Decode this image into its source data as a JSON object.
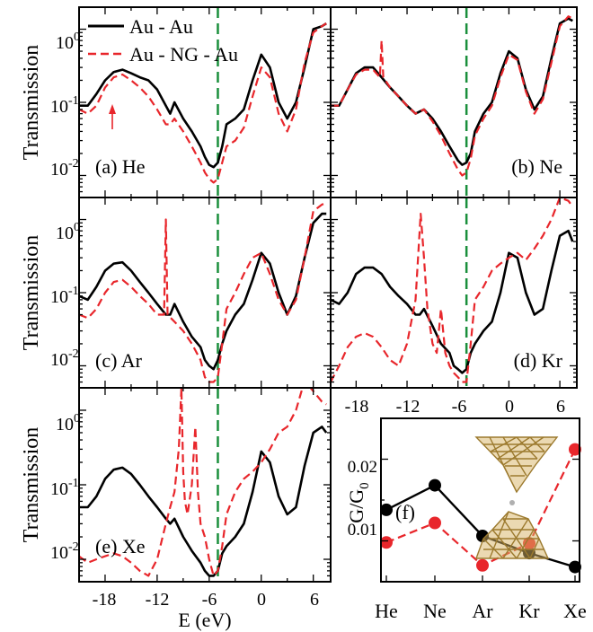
{
  "figure": {
    "ylabel": "Transmission",
    "xlabel": "E (eV)",
    "legend": [
      "Au - Au",
      "Au - NG - Au"
    ],
    "colors": {
      "au_au": "#000000",
      "au_ng_au": "#e8262b",
      "fermi": "#1a8f3c",
      "inset_gold": "#c9a04a"
    }
  },
  "chart_data": [
    {
      "type": "line",
      "id": "a",
      "panel_label": "(a) He",
      "ylabel": "Transmission",
      "yscale": "log",
      "ylim": [
        0.005,
        2
      ],
      "xlim": [
        -21,
        8
      ],
      "yticks": [
        "10-2",
        "10-1",
        "100"
      ],
      "fermi_level": -5,
      "annotation": "red arrow at -18 eV",
      "series": [
        {
          "name": "Au - Au",
          "x": [
            -21,
            -20,
            -19,
            -18,
            -17,
            -16,
            -15,
            -14,
            -13,
            -12,
            -11,
            -10.5,
            -10,
            -9,
            -8,
            -7,
            -6.5,
            -6,
            -5.5,
            -5,
            -4.5,
            -4,
            -3,
            -2,
            -1,
            0,
            1,
            2,
            3,
            4,
            5,
            6,
            7,
            7.5
          ],
          "y": [
            0.09,
            0.09,
            0.13,
            0.2,
            0.26,
            0.28,
            0.25,
            0.22,
            0.2,
            0.15,
            0.09,
            0.07,
            0.1,
            0.06,
            0.04,
            0.025,
            0.018,
            0.014,
            0.013,
            0.015,
            0.025,
            0.05,
            0.06,
            0.08,
            0.2,
            0.45,
            0.3,
            0.1,
            0.06,
            0.1,
            0.3,
            1.0,
            1.1,
            1.2
          ]
        },
        {
          "name": "Au - NG - Au",
          "x": [
            -21,
            -20,
            -19,
            -18,
            -17,
            -16,
            -15,
            -14,
            -13,
            -12,
            -11,
            -10.5,
            -10,
            -9,
            -8,
            -7,
            -6.5,
            -6,
            -5.5,
            -5,
            -4.5,
            -4,
            -3,
            -2,
            -1,
            0,
            1,
            2,
            3,
            4,
            5,
            6,
            7,
            7.5
          ],
          "y": [
            0.08,
            0.07,
            0.09,
            0.16,
            0.22,
            0.24,
            0.2,
            0.16,
            0.12,
            0.08,
            0.05,
            0.05,
            0.06,
            0.04,
            0.025,
            0.015,
            0.011,
            0.009,
            0.008,
            0.009,
            0.015,
            0.025,
            0.03,
            0.045,
            0.12,
            0.3,
            0.22,
            0.07,
            0.04,
            0.08,
            0.35,
            0.9,
            1.1,
            1.2
          ]
        }
      ]
    },
    {
      "type": "line",
      "id": "b",
      "panel_label": "(b) Ne",
      "yscale": "log",
      "ylim": [
        0.005,
        2
      ],
      "xlim": [
        -21,
        8
      ],
      "fermi_level": -5,
      "series": [
        {
          "name": "Au - Au",
          "x": [
            -21,
            -20,
            -19,
            -18,
            -17,
            -16,
            -15,
            -14,
            -13,
            -12,
            -11,
            -10,
            -9,
            -8,
            -7,
            -6,
            -5.5,
            -5,
            -4.5,
            -4,
            -3,
            -2,
            -1,
            0,
            1,
            2,
            3,
            4,
            5,
            6,
            7,
            7.5
          ],
          "y": [
            0.09,
            0.09,
            0.15,
            0.25,
            0.3,
            0.3,
            0.22,
            0.16,
            0.12,
            0.09,
            0.07,
            0.08,
            0.06,
            0.04,
            0.025,
            0.016,
            0.014,
            0.015,
            0.02,
            0.04,
            0.07,
            0.1,
            0.25,
            0.5,
            0.4,
            0.15,
            0.08,
            0.12,
            0.4,
            1.2,
            1.4,
            1.3
          ]
        },
        {
          "name": "Au - NG - Au",
          "x": [
            -21,
            -20,
            -19,
            -18,
            -17,
            -16,
            -15.2,
            -15,
            -14.8,
            -14,
            -13,
            -12,
            -11,
            -10,
            -9,
            -8,
            -7,
            -6,
            -5.5,
            -5,
            -4.5,
            -4,
            -3,
            -2,
            -1,
            0,
            1,
            2,
            3,
            4,
            5,
            6,
            7,
            7.5
          ],
          "y": [
            0.09,
            0.09,
            0.15,
            0.24,
            0.28,
            0.28,
            0.22,
            0.7,
            0.22,
            0.16,
            0.12,
            0.09,
            0.07,
            0.08,
            0.055,
            0.035,
            0.02,
            0.012,
            0.01,
            0.011,
            0.017,
            0.035,
            0.06,
            0.09,
            0.22,
            0.45,
            0.38,
            0.14,
            0.07,
            0.11,
            0.35,
            1.1,
            1.5,
            1.4
          ]
        }
      ]
    },
    {
      "type": "line",
      "id": "c",
      "panel_label": "(c) Ar",
      "ylabel": "Transmission",
      "yscale": "log",
      "ylim": [
        0.005,
        2
      ],
      "xlim": [
        -21,
        8
      ],
      "yticks": [
        "10-2",
        "10-1",
        "100"
      ],
      "fermi_level": -5,
      "series": [
        {
          "name": "Au - Au",
          "x": [
            -21,
            -20,
            -19,
            -18,
            -17,
            -16,
            -15,
            -14,
            -13,
            -12,
            -11,
            -10.5,
            -10,
            -9,
            -8,
            -7,
            -6.5,
            -6,
            -5.5,
            -5,
            -4.5,
            -4,
            -3,
            -2,
            -1,
            0,
            1,
            2,
            3,
            4,
            5,
            6,
            7,
            7.5
          ],
          "y": [
            0.09,
            0.08,
            0.12,
            0.2,
            0.25,
            0.26,
            0.2,
            0.14,
            0.1,
            0.07,
            0.05,
            0.05,
            0.07,
            0.04,
            0.025,
            0.018,
            0.012,
            0.01,
            0.009,
            0.012,
            0.02,
            0.03,
            0.05,
            0.07,
            0.15,
            0.35,
            0.25,
            0.1,
            0.05,
            0.09,
            0.3,
            0.9,
            1.2,
            1.2
          ]
        },
        {
          "name": "Au - NG - Au",
          "x": [
            -21,
            -20,
            -19,
            -18,
            -17,
            -16,
            -15,
            -14,
            -13,
            -12,
            -11.2,
            -11,
            -10.8,
            -10,
            -9,
            -8,
            -7,
            -6.5,
            -6,
            -5.5,
            -5,
            -4.5,
            -4,
            -3,
            -2,
            -1,
            0,
            1,
            2,
            3,
            4,
            5,
            6,
            7,
            7.5
          ],
          "y": [
            0.05,
            0.045,
            0.06,
            0.1,
            0.14,
            0.15,
            0.12,
            0.09,
            0.07,
            0.05,
            0.05,
            1.0,
            0.05,
            0.04,
            0.03,
            0.02,
            0.012,
            0.007,
            0.006,
            0.006,
            0.007,
            0.02,
            0.06,
            0.1,
            0.18,
            0.3,
            0.35,
            0.18,
            0.08,
            0.05,
            0.08,
            0.3,
            1.3,
            1.6,
            1.7
          ]
        }
      ]
    },
    {
      "type": "line",
      "id": "d",
      "panel_label": "(d) Kr",
      "yscale": "log",
      "ylim": [
        0.005,
        2
      ],
      "xlim": [
        -21,
        8
      ],
      "fermi_level": -5,
      "xticks": [
        "-18",
        "-12",
        "-6",
        "0",
        "6"
      ],
      "series": [
        {
          "name": "Au - Au",
          "x": [
            -21,
            -20,
            -19,
            -18,
            -17,
            -16,
            -15,
            -14,
            -13,
            -12,
            -11,
            -10.5,
            -10,
            -9,
            -8,
            -7,
            -6.5,
            -6,
            -5.5,
            -5,
            -4.5,
            -4,
            -3,
            -2,
            -1,
            0,
            1,
            2,
            3,
            4,
            5,
            6,
            7,
            7.5
          ],
          "y": [
            0.08,
            0.07,
            0.1,
            0.18,
            0.22,
            0.22,
            0.18,
            0.12,
            0.09,
            0.07,
            0.05,
            0.05,
            0.06,
            0.035,
            0.02,
            0.015,
            0.01,
            0.009,
            0.008,
            0.009,
            0.015,
            0.02,
            0.03,
            0.04,
            0.1,
            0.35,
            0.3,
            0.1,
            0.05,
            0.06,
            0.2,
            0.6,
            0.7,
            0.5
          ]
        },
        {
          "name": "Au - NG - Au",
          "x": [
            -21,
            -20,
            -19,
            -18,
            -17,
            -16,
            -15,
            -14,
            -13,
            -12,
            -11,
            -10.4,
            -10,
            -9.6,
            -9,
            -8.5,
            -8,
            -7.5,
            -7,
            -6.5,
            -6,
            -5.5,
            -5,
            -4.5,
            -4,
            -3,
            -2,
            -1,
            0,
            1,
            2,
            3,
            4,
            5,
            6,
            7,
            7.5
          ],
          "y": [
            0.006,
            0.01,
            0.018,
            0.025,
            0.028,
            0.025,
            0.018,
            0.012,
            0.01,
            0.02,
            0.08,
            1.2,
            0.3,
            0.06,
            0.02,
            0.015,
            0.06,
            0.015,
            0.01,
            0.008,
            0.007,
            0.006,
            0.006,
            0.02,
            0.08,
            0.12,
            0.2,
            0.25,
            0.3,
            0.35,
            0.28,
            0.4,
            0.6,
            1.0,
            2.0,
            1.8,
            1.5
          ]
        }
      ]
    },
    {
      "type": "line",
      "id": "e",
      "panel_label": "(e) Xe",
      "ylabel": "Transmission",
      "xlabel": "E (eV)",
      "yscale": "log",
      "ylim": [
        0.005,
        2
      ],
      "xlim": [
        -21,
        8
      ],
      "yticks": [
        "10-2",
        "10-1",
        "100"
      ],
      "xticks": [
        "-18",
        "-12",
        "-6",
        "0",
        "6"
      ],
      "fermi_level": -5,
      "series": [
        {
          "name": "Au - Au",
          "x": [
            -21,
            -20,
            -19,
            -18,
            -17,
            -16,
            -15,
            -14,
            -13,
            -12,
            -11,
            -10.5,
            -10,
            -9,
            -8,
            -7,
            -6.5,
            -6,
            -5.5,
            -5,
            -4.5,
            -4,
            -3,
            -2,
            -1,
            0,
            1,
            2,
            3,
            4,
            5,
            6,
            7,
            7.5
          ],
          "y": [
            0.05,
            0.05,
            0.07,
            0.12,
            0.16,
            0.17,
            0.14,
            0.1,
            0.07,
            0.05,
            0.035,
            0.03,
            0.035,
            0.02,
            0.013,
            0.009,
            0.007,
            0.006,
            0.006,
            0.007,
            0.012,
            0.015,
            0.02,
            0.03,
            0.08,
            0.28,
            0.2,
            0.07,
            0.04,
            0.05,
            0.18,
            0.5,
            0.6,
            0.5
          ]
        },
        {
          "name": "Au - NG - Au",
          "x": [
            -21,
            -20,
            -19,
            -18,
            -17,
            -16,
            -15,
            -14,
            -13,
            -12,
            -11,
            -10.5,
            -10,
            -9.5,
            -9.2,
            -9,
            -8.8,
            -8.5,
            -8,
            -7.6,
            -7.3,
            -7,
            -6.5,
            -6,
            -5.5,
            -5,
            -4.5,
            -4,
            -3,
            -2,
            -1,
            0,
            1,
            2,
            3,
            4,
            5,
            6,
            7,
            7.5
          ],
          "y": [
            0.011,
            0.009,
            0.01,
            0.011,
            0.012,
            0.011,
            0.009,
            0.007,
            0.006,
            0.01,
            0.03,
            0.05,
            0.08,
            0.3,
            2.0,
            0.15,
            0.06,
            0.04,
            0.1,
            0.6,
            0.08,
            0.03,
            0.02,
            0.01,
            0.006,
            0.007,
            0.015,
            0.04,
            0.08,
            0.12,
            0.15,
            0.2,
            0.3,
            0.5,
            0.6,
            1.0,
            2.5,
            1.8,
            1.3,
            1.2
          ]
        }
      ]
    },
    {
      "type": "line",
      "id": "f",
      "panel_label": "(f)",
      "ylabel": "G/G0",
      "categories": [
        "He",
        "Ne",
        "Ar",
        "Kr",
        "Xe"
      ],
      "ylim": [
        0.005,
        0.025
      ],
      "yticks": [
        "0.01",
        "0.02"
      ],
      "series": [
        {
          "name": "Au - Au",
          "values": [
            0.0138,
            0.0168,
            0.0106,
            0.0085,
            0.0068
          ]
        },
        {
          "name": "Au - NG - Au",
          "values": [
            0.0098,
            0.0122,
            0.007,
            0.0097,
            0.0212
          ]
        }
      ]
    }
  ]
}
